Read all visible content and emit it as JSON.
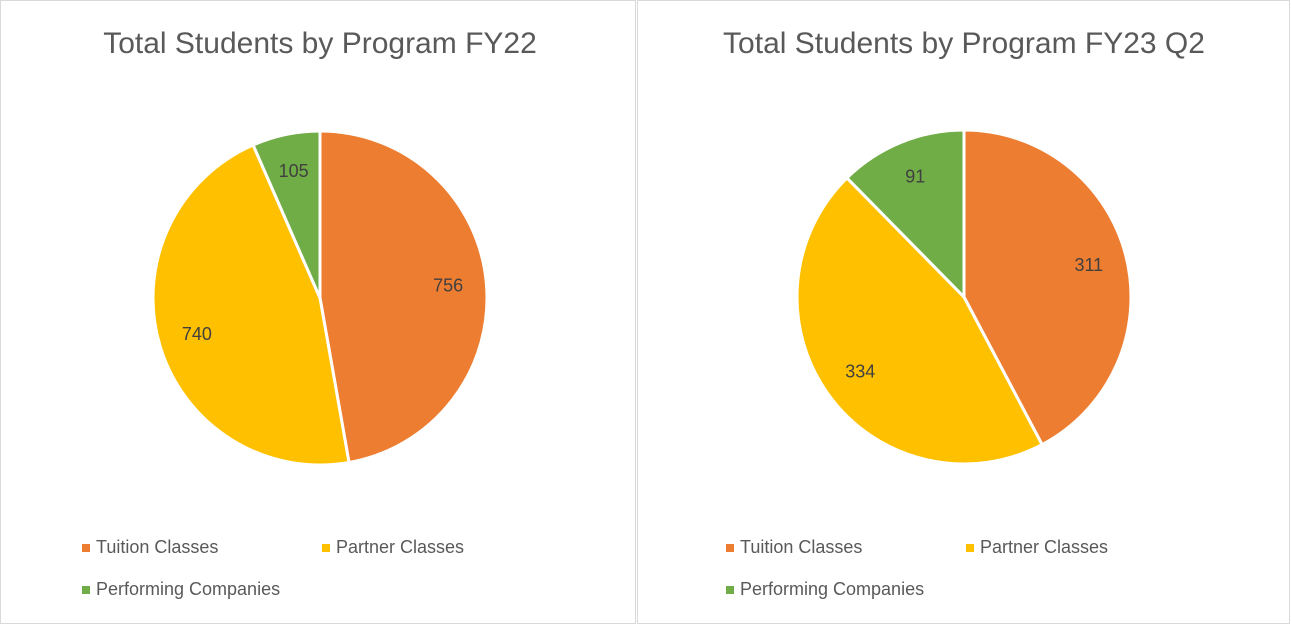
{
  "chart_data": [
    {
      "type": "pie",
      "title": "Total Students by Program FY22",
      "categories": [
        "Tuition Classes",
        "Partner Classes",
        "Performing Companies"
      ],
      "values": [
        756,
        740,
        105
      ],
      "colors": [
        "#ED7D31",
        "#FFC000",
        "#70AD47"
      ]
    },
    {
      "type": "pie",
      "title": "Total Students by Program FY23 Q2",
      "categories": [
        "Tuition Classes",
        "Partner Classes",
        "Performing Companies"
      ],
      "values": [
        311,
        334,
        91
      ],
      "colors": [
        "#ED7D31",
        "#FFC000",
        "#70AD47"
      ]
    }
  ]
}
